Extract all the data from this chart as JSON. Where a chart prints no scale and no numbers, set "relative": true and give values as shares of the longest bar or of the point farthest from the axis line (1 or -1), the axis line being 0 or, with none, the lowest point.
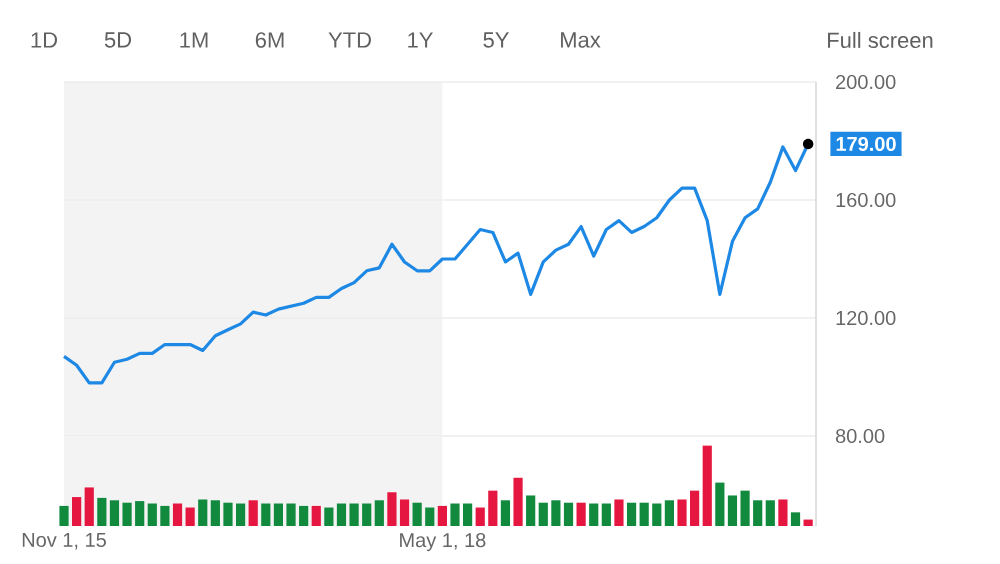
{
  "chart_data": [
    {
      "type": "line",
      "color": "#1e88e5",
      "annotations": [
        "1D",
        "5D",
        "1M",
        "6M",
        "YTD",
        "1Y",
        "5Y",
        "Max",
        "Full screen",
        {
          "text": "179.00",
          "x": "2020-10",
          "y": 179
        }
      ],
      "x": [
        "2015-11",
        "2015-12",
        "2016-01",
        "2016-02",
        "2016-03",
        "2016-04",
        "2016-05",
        "2016-06",
        "2016-07",
        "2016-08",
        "2016-09",
        "2016-10",
        "2016-11",
        "2016-12",
        "2017-01",
        "2017-02",
        "2017-03",
        "2017-04",
        "2017-05",
        "2017-06",
        "2017-07",
        "2017-08",
        "2017-09",
        "2017-10",
        "2017-11",
        "2017-12",
        "2018-01",
        "2018-02",
        "2018-03",
        "2018-04",
        "2018-05",
        "2018-06",
        "2018-07",
        "2018-08",
        "2018-09",
        "2018-10",
        "2018-11",
        "2018-12",
        "2019-01",
        "2019-02",
        "2019-03",
        "2019-04",
        "2019-05",
        "2019-06",
        "2019-07",
        "2019-08",
        "2019-09",
        "2019-10",
        "2019-11",
        "2019-12",
        "2020-01",
        "2020-02",
        "2020-03",
        "2020-04",
        "2020-05",
        "2020-06",
        "2020-07",
        "2020-08",
        "2020-09",
        "2020-10"
      ],
      "values": [
        107,
        104,
        98,
        98,
        105,
        106,
        108,
        108,
        111,
        111,
        111,
        109,
        114,
        116,
        118,
        122,
        121,
        123,
        124,
        125,
        127,
        127,
        130,
        132,
        136,
        137,
        145,
        139,
        136,
        136,
        140,
        140,
        145,
        150,
        149,
        139,
        142,
        128,
        139,
        143,
        145,
        151,
        141,
        150,
        153,
        149,
        151,
        154,
        160,
        164,
        164,
        153,
        128,
        146,
        154,
        157,
        166,
        178,
        170,
        179
      ],
      "xlim": [
        "2015-11-01",
        "2020-10-20"
      ],
      "ylim": [
        80,
        200
      ],
      "yticks": [
        {
          "value": 80,
          "label": "80.00"
        },
        {
          "value": 120,
          "label": "120.00"
        },
        {
          "value": 160,
          "label": "160.00"
        },
        {
          "value": 200,
          "label": "200.00"
        }
      ],
      "tick_labels": "y",
      "grid": "y",
      "bands": [
        {
          "axis": "x",
          "from": "2015-11-01",
          "to": "2018-05-01",
          "color": "#f3f3f3"
        }
      ]
    },
    {
      "type": "bar",
      "relative": true,
      "x": [
        "2015-11",
        "2015-12",
        "2016-01",
        "2016-02",
        "2016-03",
        "2016-04",
        "2016-05",
        "2016-06",
        "2016-07",
        "2016-08",
        "2016-09",
        "2016-10",
        "2016-11",
        "2016-12",
        "2017-01",
        "2017-02",
        "2017-03",
        "2017-04",
        "2017-05",
        "2017-06",
        "2017-07",
        "2017-08",
        "2017-09",
        "2017-10",
        "2017-11",
        "2017-12",
        "2018-01",
        "2018-02",
        "2018-03",
        "2018-04",
        "2018-05",
        "2018-06",
        "2018-07",
        "2018-08",
        "2018-09",
        "2018-10",
        "2018-11",
        "2018-12",
        "2019-01",
        "2019-02",
        "2019-03",
        "2019-04",
        "2019-05",
        "2019-06",
        "2019-07",
        "2019-08",
        "2019-09",
        "2019-10",
        "2019-11",
        "2019-12",
        "2020-01",
        "2020-02",
        "2020-03",
        "2020-04",
        "2020-05",
        "2020-06",
        "2020-07",
        "2020-08",
        "2020-09",
        "2020-10"
      ],
      "colors": [
        "#128a3e",
        "#e5163f",
        "#e5163f",
        "#128a3e",
        "#128a3e",
        "#128a3e",
        "#128a3e",
        "#128a3e",
        "#128a3e",
        "#e5163f",
        "#e5163f",
        "#128a3e",
        "#128a3e",
        "#128a3e",
        "#128a3e",
        "#e5163f",
        "#128a3e",
        "#128a3e",
        "#128a3e",
        "#128a3e",
        "#e5163f",
        "#128a3e",
        "#128a3e",
        "#128a3e",
        "#128a3e",
        "#128a3e",
        "#e5163f",
        "#e5163f",
        "#128a3e",
        "#128a3e",
        "#e5163f",
        "#128a3e",
        "#128a3e",
        "#e5163f",
        "#e5163f",
        "#128a3e",
        "#e5163f",
        "#128a3e",
        "#128a3e",
        "#128a3e",
        "#128a3e",
        "#e5163f",
        "#128a3e",
        "#128a3e",
        "#e5163f",
        "#128a3e",
        "#128a3e",
        "#128a3e",
        "#128a3e",
        "#e5163f",
        "#e5163f",
        "#e5163f",
        "#128a3e",
        "#128a3e",
        "#128a3e",
        "#128a3e",
        "#128a3e",
        "#e5163f",
        "#128a3e",
        "#e5163f"
      ],
      "values": [
        0.25,
        0.36,
        0.48,
        0.35,
        0.32,
        0.29,
        0.31,
        0.28,
        0.25,
        0.28,
        0.23,
        0.33,
        0.32,
        0.29,
        0.28,
        0.32,
        0.28,
        0.28,
        0.28,
        0.25,
        0.25,
        0.23,
        0.28,
        0.28,
        0.28,
        0.32,
        0.42,
        0.33,
        0.29,
        0.23,
        0.25,
        0.28,
        0.28,
        0.23,
        0.44,
        0.32,
        0.6,
        0.38,
        0.29,
        0.32,
        0.29,
        0.29,
        0.28,
        0.28,
        0.33,
        0.29,
        0.29,
        0.28,
        0.32,
        0.33,
        0.44,
        1.0,
        0.54,
        0.38,
        0.44,
        0.32,
        0.32,
        0.33,
        0.17,
        0.08
      ],
      "xlim": [
        "2015-11-01",
        "2020-10-20"
      ],
      "xticks": [
        {
          "value": "2015-11-01",
          "label": "Nov 1, 15"
        },
        {
          "value": "2018-05-01",
          "label": "May 1, 18"
        }
      ],
      "tick_labels": "x",
      "bands": [
        {
          "axis": "x",
          "from": "2015-11-01",
          "to": "2018-05-01",
          "color": "#f3f3f3"
        }
      ]
    }
  ]
}
